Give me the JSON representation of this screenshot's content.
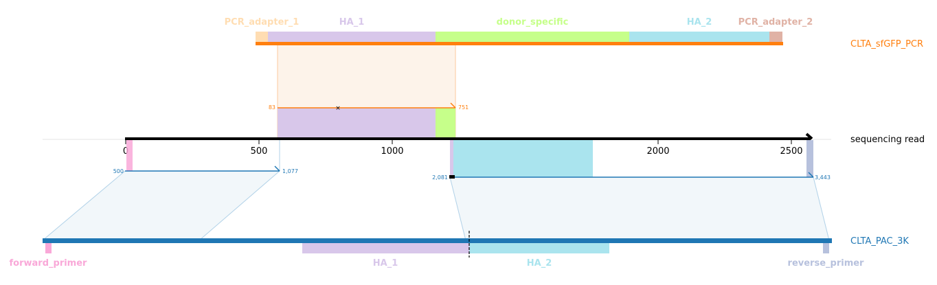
{
  "top_target": {
    "name": "CLTA_sfGFP_PCR",
    "color": "#ff7f0e",
    "features": [
      {
        "label": "PCR_adapter_1",
        "color": "#ffddb2"
      },
      {
        "label": "HA_1",
        "color": "#d8c7ea"
      },
      {
        "label": "donor_specific",
        "color": "#c6ff8a"
      },
      {
        "label": "HA_2",
        "color": "#aae4ee"
      },
      {
        "label": "PCR_adapter_2",
        "color": "#e0b2a5"
      }
    ],
    "alignment": {
      "start": "83",
      "end": "751"
    }
  },
  "read": {
    "name": "sequencing read",
    "ticks": [
      "0",
      "500",
      "1000",
      "1500",
      "2000",
      "2500"
    ]
  },
  "bottom_target": {
    "name": "CLTA_PAC_3K",
    "color": "#1f77b4",
    "features": [
      {
        "label": "forward_primer",
        "color": "#f9a8d8"
      },
      {
        "label": "HA_1",
        "color": "#d8c7ea"
      },
      {
        "label": "HA_2",
        "color": "#aae4ee"
      },
      {
        "label": "reverse_primer",
        "color": "#b7c1dd"
      }
    ],
    "alignments": [
      {
        "start": "500",
        "end": "1,077"
      },
      {
        "start": "2,081",
        "end": "3,443"
      }
    ]
  }
}
